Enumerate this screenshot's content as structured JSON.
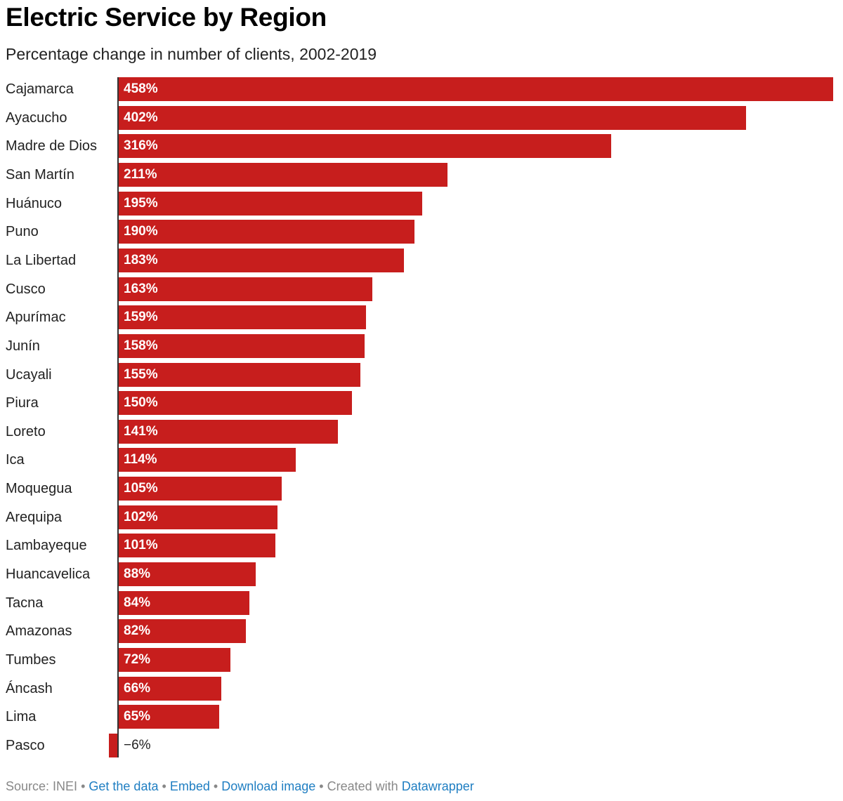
{
  "chart_data": {
    "type": "bar",
    "orientation": "horizontal",
    "title": "Electric Service by Region",
    "subtitle": "Percentage change in number of clients, 2002-2019",
    "xlabel": "",
    "ylabel": "",
    "xlim": [
      -6,
      458
    ],
    "unit": "%",
    "color": "#c71e1d",
    "categories": [
      "Cajamarca",
      "Ayacucho",
      "Madre de Dios",
      "San Martín",
      "Huánuco",
      "Puno",
      "La Libertad",
      "Cusco",
      "Apurímac",
      "Junín",
      "Ucayali",
      "Piura",
      "Loreto",
      "Ica",
      "Moquegua",
      "Arequipa",
      "Lambayeque",
      "Huancavelica",
      "Tacna",
      "Amazonas",
      "Tumbes",
      "Áncash",
      "Lima",
      "Pasco"
    ],
    "values": [
      458,
      402,
      316,
      211,
      195,
      190,
      183,
      163,
      159,
      158,
      155,
      150,
      141,
      114,
      105,
      102,
      101,
      88,
      84,
      82,
      72,
      66,
      65,
      -6
    ],
    "value_labels": [
      "458%",
      "402%",
      "316%",
      "211%",
      "195%",
      "190%",
      "183%",
      "163%",
      "159%",
      "158%",
      "155%",
      "150%",
      "141%",
      "114%",
      "105%",
      "102%",
      "101%",
      "88%",
      "84%",
      "82%",
      "72%",
      "66%",
      "65%",
      "−6%"
    ]
  },
  "footer": {
    "source": "Source: INEI",
    "separator": "•",
    "get_data": "Get the data",
    "embed": "Embed",
    "download": "Download image",
    "created_with": "Created with",
    "datawrapper": "Datawrapper"
  }
}
